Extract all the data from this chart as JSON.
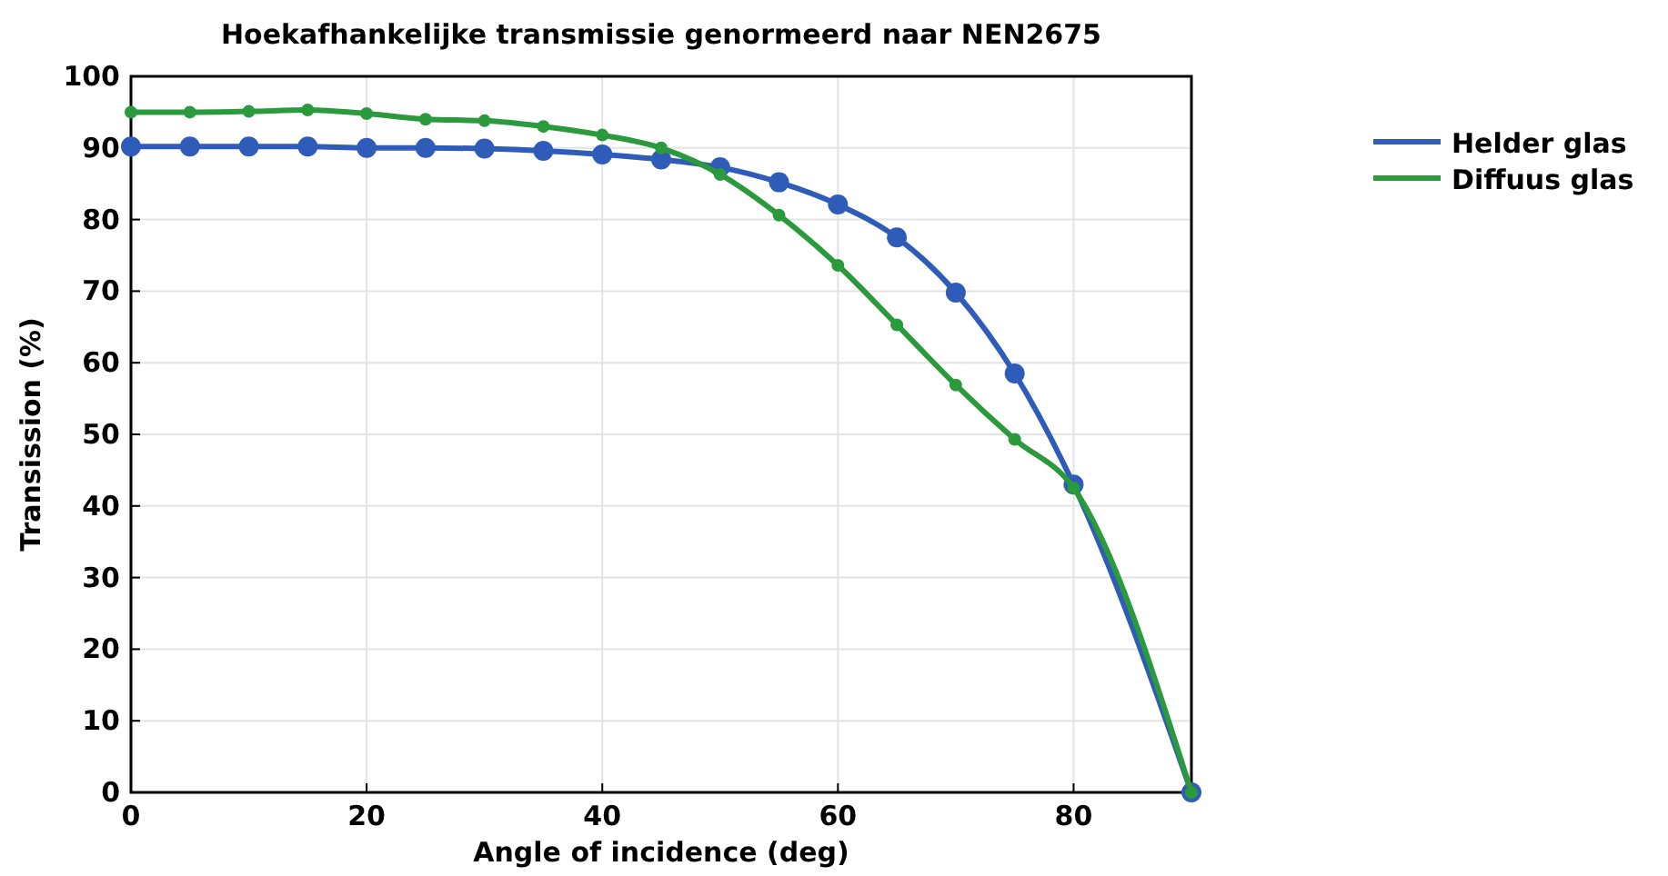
{
  "chart_data": {
    "type": "line",
    "title": "Hoekafhankelijke transmissie genormeerd naar NEN2675",
    "xlabel": "Angle of incidence (deg)",
    "ylabel": "Transission (%)",
    "xlim": [
      0,
      90
    ],
    "xticks": [
      0,
      20,
      40,
      60,
      80
    ],
    "ylim": [
      0,
      100
    ],
    "yticks": [
      0,
      10,
      20,
      30,
      40,
      50,
      60,
      70,
      80,
      90,
      100
    ],
    "grid": true,
    "legend": "top right",
    "marker": "circle",
    "line_style": "solid",
    "series": [
      {
        "name": "Helder glas",
        "color": "#2e5cb8",
        "x": [
          0,
          5,
          10,
          15,
          20,
          25,
          30,
          35,
          40,
          45,
          50,
          55,
          60,
          65,
          70,
          75,
          80,
          90
        ],
        "values": [
          90.2,
          90.2,
          90.2,
          90.2,
          90.0,
          90.0,
          89.9,
          89.6,
          89.1,
          88.4,
          87.3,
          85.2,
          82.1,
          77.5,
          69.8,
          58.5,
          43,
          0
        ]
      },
      {
        "name": "Diffuus glas",
        "color": "#2a9a3c",
        "x": [
          0,
          5,
          10,
          15,
          20,
          25,
          30,
          35,
          40,
          45,
          50,
          55,
          60,
          65,
          70,
          75,
          80,
          90
        ],
        "values": [
          95,
          95,
          95.1,
          95.3,
          94.8,
          94,
          93.8,
          93,
          91.8,
          90,
          86.3,
          80.6,
          73.6,
          65.3,
          56.9,
          49.3,
          42.5,
          0
        ]
      }
    ]
  }
}
